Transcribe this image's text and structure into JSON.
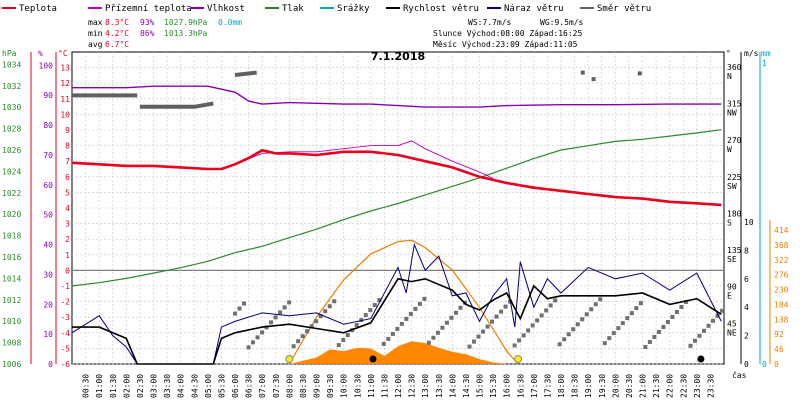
{
  "chart_data": {
    "type": "line",
    "title": "7.1.2018",
    "legend": {
      "placement": "top",
      "items": [
        {
          "label": "Teplota",
          "color": "#e8001c"
        },
        {
          "label": "Přízemní teplota",
          "color": "#c000c0"
        },
        {
          "label": "Vlhkost",
          "color": "#8a00b0"
        },
        {
          "label": "Tlak",
          "color": "#2a8a2a"
        },
        {
          "label": "Srážky",
          "color": "#00a8c8"
        },
        {
          "label": "Rychlost větru",
          "color": "#000000"
        },
        {
          "label": "Náraz větru",
          "color": "#000080"
        },
        {
          "label": "Směr větru",
          "color": "#666666"
        }
      ]
    },
    "summary": {
      "max_label": "max",
      "max_temp": "8.3°C",
      "max_hum": "93%",
      "max_press": "1027.9hPa",
      "max_rain": "0.0mm",
      "min_label": "min",
      "min_temp": "4.2°C",
      "min_hum": "86%",
      "min_press": "1013.3hPa",
      "avg_label": "avg",
      "avg_temp": "6.7°C",
      "ws": "WS:7.7m/s",
      "wg": "WG:9.5m/s",
      "sun": "Slunce Východ:08:00  Západ:16:25",
      "moon": "Měsíc  Východ:23:09  Západ:11:05"
    },
    "axes": {
      "hpa_unit": "hPa",
      "hpa_ticks": [
        "1034",
        "1032",
        "1030",
        "1028",
        "1026",
        "1024",
        "1022",
        "1020",
        "1018",
        "1016",
        "1014",
        "1012",
        "1010",
        "1008",
        "1006"
      ],
      "hum_unit": "%",
      "hum_ticks": [
        "100",
        "90",
        "80",
        "70",
        "60",
        "50",
        "40",
        "30",
        "20",
        "10",
        "0"
      ],
      "temp_unit": "°C",
      "temp_ticks": [
        "13",
        "12",
        "11",
        "10",
        "9",
        "8",
        "7",
        "6",
        "5",
        "4",
        "3",
        "2",
        "1",
        "0",
        "-1",
        "-2",
        "-3",
        "-4",
        "-5",
        "-6"
      ],
      "dir_unit": "°",
      "dir_ticks": [
        {
          "deg": "360",
          "lbl": "N"
        },
        {
          "deg": "315",
          "lbl": "NW"
        },
        {
          "deg": "270",
          "lbl": "W"
        },
        {
          "deg": "225",
          "lbl": "SW"
        },
        {
          "deg": "180",
          "lbl": "S"
        },
        {
          "deg": "135",
          "lbl": "SE"
        },
        {
          "deg": "90",
          "lbl": "E"
        },
        {
          "deg": "45",
          "lbl": "NE"
        }
      ],
      "ms_unit": "m/s",
      "ms_ticks": [
        "10",
        "8",
        "6",
        "4",
        "2",
        "0"
      ],
      "mm_unit": "mm",
      "mm_top": "1",
      "mm_zero": "0",
      "rad_ticks": [
        "414",
        "368",
        "322",
        "276",
        "230",
        "184",
        "138",
        "92",
        "46",
        "0"
      ],
      "time_ticks": [
        "00:30",
        "01:00",
        "01:30",
        "02:00",
        "02:30",
        "03:00",
        "03:30",
        "04:00",
        "04:30",
        "05:00",
        "05:30",
        "06:00",
        "06:30",
        "07:00",
        "07:30",
        "08:00",
        "08:30",
        "09:00",
        "09:30",
        "10:00",
        "10:30",
        "11:00",
        "11:30",
        "12:00",
        "12:30",
        "13:00",
        "13:30",
        "14:00",
        "14:30",
        "15:00",
        "15:30",
        "16:00",
        "16:30",
        "17:00",
        "17:30",
        "18:00",
        "18:30",
        "19:00",
        "19:30",
        "20:00",
        "20:30",
        "21:00",
        "21:30",
        "22:00",
        "22:30",
        "23:00",
        "23:30"
      ],
      "time_label": "čas"
    },
    "series": {
      "temperature_C": [
        [
          0,
          6.9
        ],
        [
          1,
          6.8
        ],
        [
          2,
          6.7
        ],
        [
          3,
          6.7
        ],
        [
          4,
          6.6
        ],
        [
          5,
          6.5
        ],
        [
          5.5,
          6.5
        ],
        [
          6,
          6.8
        ],
        [
          6.5,
          7.2
        ],
        [
          7,
          7.7
        ],
        [
          7.5,
          7.5
        ],
        [
          8,
          7.5
        ],
        [
          9,
          7.4
        ],
        [
          10,
          7.6
        ],
        [
          11,
          7.6
        ],
        [
          12,
          7.4
        ],
        [
          13,
          7.0
        ],
        [
          14,
          6.6
        ],
        [
          15,
          6.0
        ],
        [
          16,
          5.6
        ],
        [
          17,
          5.3
        ],
        [
          18,
          5.1
        ],
        [
          19,
          4.9
        ],
        [
          20,
          4.7
        ],
        [
          21,
          4.6
        ],
        [
          22,
          4.4
        ],
        [
          23,
          4.3
        ],
        [
          23.9,
          4.2
        ]
      ],
      "ground_temp_C": [
        [
          6,
          6.8
        ],
        [
          7,
          7.5
        ],
        [
          8,
          7.6
        ],
        [
          9,
          7.6
        ],
        [
          10,
          7.8
        ],
        [
          11,
          8.0
        ],
        [
          12,
          8.0
        ],
        [
          12.5,
          8.3
        ],
        [
          13,
          7.8
        ],
        [
          14,
          7.0
        ],
        [
          15,
          6.3
        ],
        [
          15.5,
          5.9
        ]
      ],
      "humidity_pct": [
        [
          0,
          92.5
        ],
        [
          2,
          92.5
        ],
        [
          3,
          93
        ],
        [
          4,
          93
        ],
        [
          5,
          93
        ],
        [
          6,
          91
        ],
        [
          6.5,
          88
        ],
        [
          7,
          87
        ],
        [
          8,
          87.5
        ],
        [
          10,
          87
        ],
        [
          11,
          87
        ],
        [
          12,
          86.5
        ],
        [
          13,
          86
        ],
        [
          15,
          86
        ],
        [
          16,
          86.5
        ],
        [
          18,
          86.8
        ],
        [
          20,
          86.8
        ],
        [
          22,
          87
        ],
        [
          23.9,
          87
        ]
      ],
      "pressure_hPa": [
        [
          0,
          1013.3
        ],
        [
          1,
          1013.6
        ],
        [
          2,
          1014.0
        ],
        [
          3,
          1014.5
        ],
        [
          4,
          1015.0
        ],
        [
          5,
          1015.6
        ],
        [
          6,
          1016.4
        ],
        [
          7,
          1017.0
        ],
        [
          8,
          1017.8
        ],
        [
          9,
          1018.6
        ],
        [
          10,
          1019.5
        ],
        [
          11,
          1020.3
        ],
        [
          12,
          1021.0
        ],
        [
          13,
          1021.8
        ],
        [
          14,
          1022.6
        ],
        [
          15,
          1023.4
        ],
        [
          16,
          1024.3
        ],
        [
          17,
          1025.2
        ],
        [
          18,
          1026.0
        ],
        [
          19,
          1026.4
        ],
        [
          20,
          1026.8
        ],
        [
          21,
          1027.0
        ],
        [
          22,
          1027.3
        ],
        [
          23,
          1027.6
        ],
        [
          23.9,
          1027.9
        ]
      ],
      "wind_speed_ms": [
        [
          0,
          2.6
        ],
        [
          1,
          2.6
        ],
        [
          2,
          1.8
        ],
        [
          2.4,
          0
        ],
        [
          5.2,
          0
        ],
        [
          5.5,
          1.8
        ],
        [
          6,
          2.2
        ],
        [
          7,
          2.6
        ],
        [
          8,
          2.8
        ],
        [
          9,
          2.5
        ],
        [
          10,
          2.2
        ],
        [
          11,
          2.9
        ],
        [
          12,
          6.0
        ],
        [
          12.5,
          5.8
        ],
        [
          13,
          6.0
        ],
        [
          14,
          5.2
        ],
        [
          14.5,
          4.2
        ],
        [
          15,
          3.8
        ],
        [
          15.5,
          4.5
        ],
        [
          16,
          5.0
        ],
        [
          16.5,
          3.2
        ],
        [
          17,
          5.5
        ],
        [
          17.5,
          4.6
        ],
        [
          18,
          4.8
        ],
        [
          19,
          4.8
        ],
        [
          20,
          4.8
        ],
        [
          21,
          5.0
        ],
        [
          22,
          4.2
        ],
        [
          23,
          4.6
        ],
        [
          23.9,
          3.5
        ]
      ],
      "wind_gust_ms": [
        [
          0,
          2.2
        ],
        [
          1,
          3.4
        ],
        [
          1.5,
          2.0
        ],
        [
          2,
          1.2
        ],
        [
          2.4,
          0
        ],
        [
          5.2,
          0
        ],
        [
          5.5,
          2.6
        ],
        [
          6,
          3.0
        ],
        [
          7,
          3.6
        ],
        [
          8,
          3.4
        ],
        [
          9,
          3.6
        ],
        [
          10,
          2.8
        ],
        [
          11,
          3.2
        ],
        [
          12,
          6.8
        ],
        [
          12.3,
          5.0
        ],
        [
          12.6,
          8.4
        ],
        [
          13,
          6.6
        ],
        [
          13.5,
          7.6
        ],
        [
          14,
          4.8
        ],
        [
          14.5,
          5.0
        ],
        [
          15,
          3.0
        ],
        [
          15.5,
          4.8
        ],
        [
          16,
          6.0
        ],
        [
          16.3,
          2.6
        ],
        [
          16.5,
          7.2
        ],
        [
          17,
          4.0
        ],
        [
          17.5,
          6.0
        ],
        [
          18,
          5.0
        ],
        [
          19,
          6.8
        ],
        [
          20,
          6.0
        ],
        [
          21,
          6.4
        ],
        [
          22,
          5.2
        ],
        [
          23,
          6.4
        ],
        [
          23.9,
          3.0
        ]
      ],
      "wind_dir_deg": [
        [
          0,
          330
        ],
        [
          1,
          330
        ],
        [
          2,
          325
        ],
        [
          3,
          325
        ],
        [
          4,
          328
        ],
        [
          5,
          333
        ],
        [
          6,
          350
        ],
        [
          7,
          355
        ],
        [
          18,
          355
        ],
        [
          21,
          350
        ]
      ],
      "solar_radiation_Wm2": [
        [
          8,
          0
        ],
        [
          9,
          20
        ],
        [
          9.5,
          45
        ],
        [
          10,
          40
        ],
        [
          10.5,
          50
        ],
        [
          11,
          48
        ],
        [
          11.5,
          25
        ],
        [
          12,
          55
        ],
        [
          12.5,
          70
        ],
        [
          13,
          65
        ],
        [
          13.5,
          50
        ],
        [
          14,
          38
        ],
        [
          14.5,
          30
        ],
        [
          15,
          15
        ],
        [
          15.5,
          5
        ],
        [
          16,
          0
        ]
      ],
      "theoretical_radiation_Wm2": [
        [
          8,
          0
        ],
        [
          9,
          145
        ],
        [
          10,
          260
        ],
        [
          11,
          340
        ],
        [
          12,
          378
        ],
        [
          12.5,
          382
        ],
        [
          13,
          360
        ],
        [
          14,
          290
        ],
        [
          15,
          175
        ],
        [
          16,
          40
        ],
        [
          16.42,
          0
        ]
      ]
    }
  }
}
